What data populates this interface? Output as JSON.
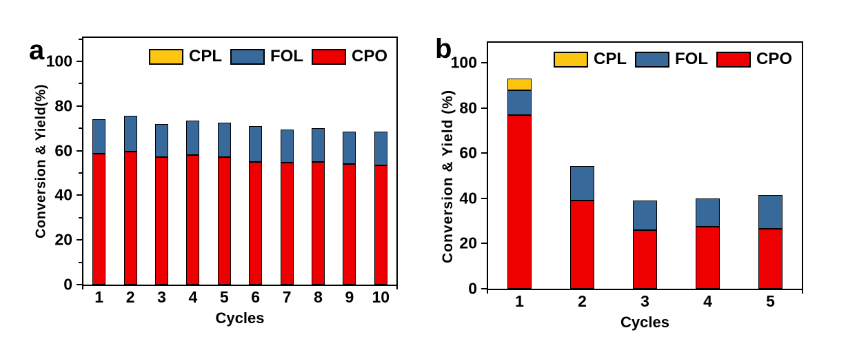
{
  "figure": {
    "background": "#ffffff"
  },
  "chart_data": [
    {
      "type": "bar",
      "stacked": true,
      "panel_label": "a",
      "xlabel": "Cycles",
      "ylabel": "Conversion & Yield(%)",
      "categories": [
        "1",
        "2",
        "3",
        "4",
        "5",
        "6",
        "7",
        "8",
        "9",
        "10"
      ],
      "series": [
        {
          "name": "CPO",
          "color": "#ee0000",
          "values": [
            58.5,
            59.5,
            57,
            58,
            57,
            55,
            54.5,
            55,
            54,
            53.5
          ]
        },
        {
          "name": "FOL",
          "color": "#38699b",
          "values": [
            15.5,
            16,
            15,
            15.5,
            15.5,
            16,
            15,
            15,
            14.5,
            15
          ]
        },
        {
          "name": "CPL",
          "color": "#fbc511",
          "values": [
            0,
            0,
            0,
            0,
            0,
            0,
            0,
            0,
            0,
            0
          ]
        }
      ],
      "totals": [
        74,
        75.5,
        72,
        73.5,
        72.5,
        71,
        69.5,
        70,
        68.5,
        68.5
      ],
      "legend_order": [
        "CPL",
        "FOL",
        "CPO"
      ],
      "legend_position": "top-center",
      "ylim": [
        0,
        110
      ],
      "yticks": [
        0,
        20,
        40,
        60,
        80,
        100
      ],
      "minor_yticks": true,
      "grid": false
    },
    {
      "type": "bar",
      "stacked": true,
      "panel_label": "b",
      "xlabel": "Cycles",
      "ylabel": "Conversion & Yield (%)",
      "categories": [
        "1",
        "2",
        "3",
        "4",
        "5"
      ],
      "series": [
        {
          "name": "CPO",
          "color": "#ee0000",
          "values": [
            77,
            39,
            26,
            27.5,
            26.5
          ]
        },
        {
          "name": "FOL",
          "color": "#38699b",
          "values": [
            11,
            15.5,
            13,
            12.5,
            15
          ]
        },
        {
          "name": "CPL",
          "color": "#fbc511",
          "values": [
            5,
            0,
            0,
            0,
            0
          ]
        }
      ],
      "totals": [
        93,
        54.5,
        39,
        40,
        41.5
      ],
      "legend_order": [
        "CPL",
        "FOL",
        "CPO"
      ],
      "legend_position": "top-center",
      "ylim": [
        0,
        110
      ],
      "yticks": [
        0,
        20,
        40,
        60,
        80,
        100
      ],
      "minor_yticks": false,
      "grid": false
    }
  ]
}
